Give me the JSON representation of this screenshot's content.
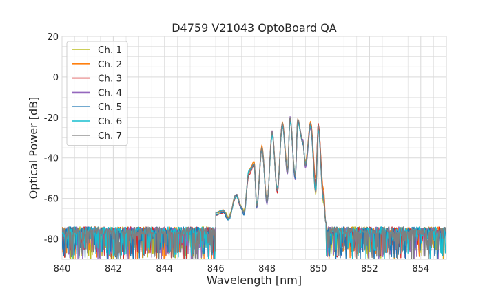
{
  "chart_data": {
    "type": "line",
    "title": "D4759 V21043 OptoBoard QA",
    "xlabel": "Wavelength [nm]",
    "ylabel": "Optical Power [dB]",
    "xlim": [
      840,
      855
    ],
    "ylim": [
      -90,
      20
    ],
    "xticks": [
      840,
      842,
      844,
      846,
      848,
      850,
      852,
      854
    ],
    "yticks": [
      -80,
      -60,
      -40,
      -20,
      0,
      20
    ],
    "grid": true,
    "legend_position": "top-left",
    "noise_floor_db": -76,
    "series": [
      {
        "name": "Ch. 1",
        "color": "#bcbd22",
        "points": [
          [
            846.0,
            -68
          ],
          [
            846.3,
            -66
          ],
          [
            846.5,
            -69
          ],
          [
            846.8,
            -58
          ],
          [
            847.0,
            -64
          ],
          [
            847.1,
            -66
          ],
          [
            847.3,
            -47
          ],
          [
            847.5,
            -42
          ],
          [
            847.6,
            -64
          ],
          [
            847.8,
            -36
          ],
          [
            848.0,
            -62
          ],
          [
            848.2,
            -28
          ],
          [
            848.4,
            -56
          ],
          [
            848.6,
            -24
          ],
          [
            848.8,
            -46
          ],
          [
            848.9,
            -21
          ],
          [
            849.1,
            -49
          ],
          [
            849.2,
            -22
          ],
          [
            849.4,
            -32
          ],
          [
            849.5,
            -43
          ],
          [
            849.7,
            -24
          ],
          [
            849.9,
            -58
          ],
          [
            850.0,
            -25
          ],
          [
            850.2,
            -62
          ],
          [
            850.3,
            -72
          ]
        ]
      },
      {
        "name": "Ch. 2",
        "color": "#ff7f0e",
        "points": [
          [
            846.0,
            -67
          ],
          [
            846.3,
            -66
          ],
          [
            846.5,
            -70
          ],
          [
            846.8,
            -58
          ],
          [
            847.0,
            -64
          ],
          [
            847.1,
            -67
          ],
          [
            847.3,
            -46
          ],
          [
            847.5,
            -42
          ],
          [
            847.6,
            -63
          ],
          [
            847.8,
            -34
          ],
          [
            848.0,
            -61
          ],
          [
            848.2,
            -27
          ],
          [
            848.4,
            -55
          ],
          [
            848.6,
            -22
          ],
          [
            848.8,
            -45
          ],
          [
            848.9,
            -20
          ],
          [
            849.1,
            -49
          ],
          [
            849.2,
            -21
          ],
          [
            849.4,
            -33
          ],
          [
            849.5,
            -42
          ],
          [
            849.7,
            -22
          ],
          [
            849.9,
            -50
          ],
          [
            850.0,
            -24
          ],
          [
            850.2,
            -55
          ],
          [
            850.3,
            -72
          ]
        ]
      },
      {
        "name": "Ch. 3",
        "color": "#d62728",
        "points": [
          [
            846.0,
            -68
          ],
          [
            846.3,
            -67
          ],
          [
            846.5,
            -70
          ],
          [
            846.8,
            -59
          ],
          [
            847.0,
            -65
          ],
          [
            847.1,
            -67
          ],
          [
            847.3,
            -48
          ],
          [
            847.5,
            -44
          ],
          [
            847.6,
            -64
          ],
          [
            847.8,
            -36
          ],
          [
            848.0,
            -62
          ],
          [
            848.2,
            -28
          ],
          [
            848.4,
            -57
          ],
          [
            848.6,
            -23
          ],
          [
            848.8,
            -47
          ],
          [
            848.9,
            -21
          ],
          [
            849.1,
            -50
          ],
          [
            849.2,
            -22
          ],
          [
            849.4,
            -32
          ],
          [
            849.5,
            -44
          ],
          [
            849.7,
            -23
          ],
          [
            849.9,
            -52
          ],
          [
            850.0,
            -23
          ],
          [
            850.2,
            -58
          ],
          [
            850.3,
            -72
          ]
        ]
      },
      {
        "name": "Ch. 4",
        "color": "#9467bd",
        "points": [
          [
            846.0,
            -67
          ],
          [
            846.3,
            -66
          ],
          [
            846.5,
            -70
          ],
          [
            846.8,
            -58
          ],
          [
            847.0,
            -65
          ],
          [
            847.1,
            -67
          ],
          [
            847.3,
            -47
          ],
          [
            847.5,
            -43
          ],
          [
            847.6,
            -65
          ],
          [
            847.8,
            -35
          ],
          [
            848.0,
            -63
          ],
          [
            848.2,
            -27
          ],
          [
            848.4,
            -56
          ],
          [
            848.6,
            -23
          ],
          [
            848.8,
            -48
          ],
          [
            848.9,
            -20
          ],
          [
            849.1,
            -51
          ],
          [
            849.2,
            -22
          ],
          [
            849.4,
            -31
          ],
          [
            849.5,
            -45
          ],
          [
            849.7,
            -25
          ],
          [
            849.9,
            -57
          ],
          [
            850.0,
            -26
          ],
          [
            850.2,
            -61
          ],
          [
            850.3,
            -72
          ]
        ]
      },
      {
        "name": "Ch. 5",
        "color": "#1f77b4",
        "points": [
          [
            846.0,
            -68
          ],
          [
            846.3,
            -67
          ],
          [
            846.5,
            -71
          ],
          [
            846.8,
            -58
          ],
          [
            847.0,
            -65
          ],
          [
            847.1,
            -68
          ],
          [
            847.3,
            -47
          ],
          [
            847.5,
            -43
          ],
          [
            847.6,
            -64
          ],
          [
            847.8,
            -35
          ],
          [
            848.0,
            -62
          ],
          [
            848.2,
            -28
          ],
          [
            848.4,
            -56
          ],
          [
            848.6,
            -24
          ],
          [
            848.8,
            -47
          ],
          [
            848.9,
            -21
          ],
          [
            849.1,
            -50
          ],
          [
            849.2,
            -22
          ],
          [
            849.4,
            -33
          ],
          [
            849.5,
            -44
          ],
          [
            849.7,
            -24
          ],
          [
            849.9,
            -56
          ],
          [
            850.0,
            -25
          ],
          [
            850.2,
            -60
          ],
          [
            850.3,
            -72
          ]
        ]
      },
      {
        "name": "Ch. 6",
        "color": "#17becf",
        "points": [
          [
            846.0,
            -67
          ],
          [
            846.3,
            -66
          ],
          [
            846.5,
            -70
          ],
          [
            846.8,
            -59
          ],
          [
            847.0,
            -64
          ],
          [
            847.1,
            -67
          ],
          [
            847.3,
            -46
          ],
          [
            847.5,
            -44
          ],
          [
            847.6,
            -63
          ],
          [
            847.8,
            -36
          ],
          [
            848.0,
            -62
          ],
          [
            848.2,
            -29
          ],
          [
            848.4,
            -55
          ],
          [
            848.6,
            -24
          ],
          [
            848.8,
            -46
          ],
          [
            848.9,
            -22
          ],
          [
            849.1,
            -48
          ],
          [
            849.2,
            -23
          ],
          [
            849.4,
            -32
          ],
          [
            849.5,
            -43
          ],
          [
            849.7,
            -24
          ],
          [
            849.9,
            -56
          ],
          [
            850.0,
            -26
          ],
          [
            850.2,
            -60
          ],
          [
            850.3,
            -72
          ]
        ]
      },
      {
        "name": "Ch. 7",
        "color": "#7f7f7f",
        "points": [
          [
            846.0,
            -67
          ],
          [
            846.3,
            -66
          ],
          [
            846.5,
            -70
          ],
          [
            846.8,
            -58
          ],
          [
            847.0,
            -64
          ],
          [
            847.1,
            -67
          ],
          [
            847.3,
            -47
          ],
          [
            847.5,
            -43
          ],
          [
            847.6,
            -64
          ],
          [
            847.8,
            -35
          ],
          [
            848.0,
            -62
          ],
          [
            848.2,
            -27
          ],
          [
            848.4,
            -56
          ],
          [
            848.6,
            -23
          ],
          [
            848.8,
            -47
          ],
          [
            848.9,
            -20
          ],
          [
            849.1,
            -49
          ],
          [
            849.2,
            -21
          ],
          [
            849.4,
            -32
          ],
          [
            849.5,
            -44
          ],
          [
            849.7,
            -23
          ],
          [
            849.9,
            -54
          ],
          [
            850.0,
            -24
          ],
          [
            850.2,
            -59
          ],
          [
            850.3,
            -72
          ]
        ]
      }
    ]
  }
}
